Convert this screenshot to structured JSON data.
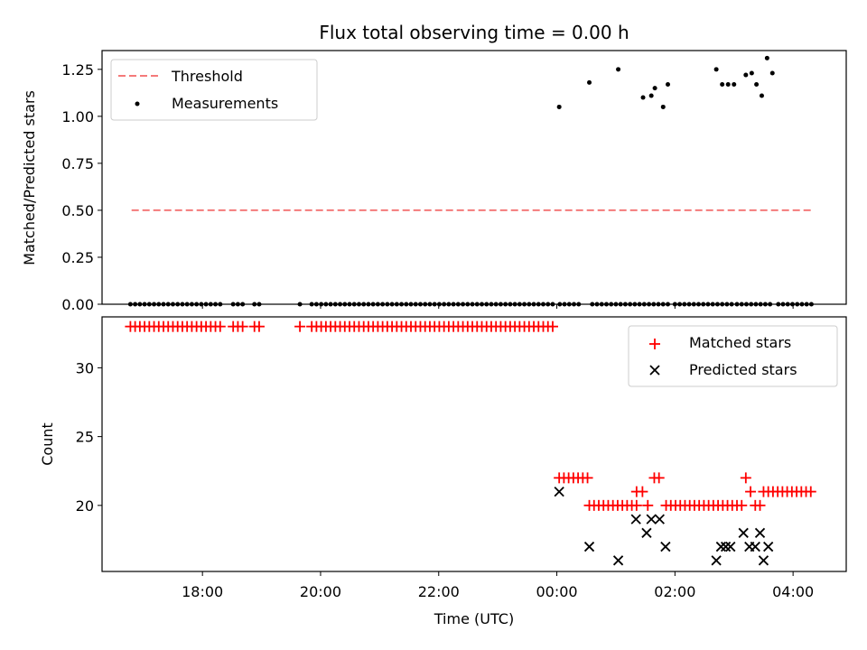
{
  "chart_data": [
    {
      "type": "scatter",
      "title": "Flux total observing time = 0.00 h",
      "xlabel": "",
      "ylabel": "Matched/Predicted stars",
      "ylim": [
        0,
        1.35
      ],
      "xlim": [
        16.3,
        28.9
      ],
      "x_unit": "hours UTC (values above 24 are after midnight)",
      "yticks": [
        "0.00",
        "0.25",
        "0.50",
        "0.75",
        "1.00",
        "1.25"
      ],
      "legend": {
        "placement": "top-left",
        "entries": [
          "Threshold",
          "Measurements"
        ]
      },
      "threshold": {
        "name": "Threshold",
        "value": 0.5,
        "x_range": [
          16.8,
          28.3
        ],
        "color": "#f47a7a"
      },
      "series": [
        {
          "name": "Measurements",
          "color": "#000000",
          "x": [
            16.78,
            16.86,
            16.94,
            17.02,
            17.1,
            17.18,
            17.26,
            17.34,
            17.42,
            17.5,
            17.58,
            17.66,
            17.74,
            17.82,
            17.9,
            17.98,
            18.06,
            18.14,
            18.22,
            18.3,
            18.52,
            18.6,
            18.68,
            18.88,
            18.96,
            19.65,
            19.85,
            19.93,
            20.01,
            20.09,
            20.17,
            20.25,
            20.33,
            20.41,
            20.49,
            20.57,
            20.65,
            20.73,
            20.81,
            20.89,
            20.97,
            21.05,
            21.13,
            21.21,
            21.29,
            21.37,
            21.45,
            21.53,
            21.61,
            21.69,
            21.77,
            21.85,
            21.93,
            22.01,
            22.09,
            22.17,
            22.25,
            22.33,
            22.41,
            22.49,
            22.57,
            22.65,
            22.73,
            22.81,
            22.89,
            22.97,
            23.05,
            23.13,
            23.21,
            23.29,
            23.37,
            23.45,
            23.53,
            23.61,
            23.69,
            23.77,
            23.85,
            23.93,
            24.05,
            24.13,
            24.21,
            24.29,
            24.37,
            24.6,
            24.68,
            24.76,
            24.84,
            24.92,
            25.0,
            25.08,
            25.16,
            25.24,
            25.32,
            25.4,
            25.48,
            25.56,
            25.64,
            25.72,
            25.8,
            25.88,
            26.0,
            26.08,
            26.16,
            26.24,
            26.32,
            26.4,
            26.48,
            26.56,
            26.64,
            26.72,
            26.8,
            26.88,
            26.96,
            27.05,
            27.13,
            27.21,
            27.29,
            27.37,
            27.45,
            27.53,
            27.61,
            27.75,
            27.83,
            27.91,
            27.99,
            28.07,
            28.15,
            28.23,
            28.31,
            24.04,
            24.55,
            25.04,
            25.46,
            25.6,
            25.66,
            25.8,
            25.88,
            26.7,
            26.8,
            26.9,
            27.0,
            27.2,
            27.3,
            27.38,
            27.47,
            27.56,
            27.65
          ],
          "y": [
            0,
            0,
            0,
            0,
            0,
            0,
            0,
            0,
            0,
            0,
            0,
            0,
            0,
            0,
            0,
            0,
            0,
            0,
            0,
            0,
            0,
            0,
            0,
            0,
            0,
            0,
            0,
            0,
            0,
            0,
            0,
            0,
            0,
            0,
            0,
            0,
            0,
            0,
            0,
            0,
            0,
            0,
            0,
            0,
            0,
            0,
            0,
            0,
            0,
            0,
            0,
            0,
            0,
            0,
            0,
            0,
            0,
            0,
            0,
            0,
            0,
            0,
            0,
            0,
            0,
            0,
            0,
            0,
            0,
            0,
            0,
            0,
            0,
            0,
            0,
            0,
            0,
            0,
            0,
            0,
            0,
            0,
            0,
            0,
            0,
            0,
            0,
            0,
            0,
            0,
            0,
            0,
            0,
            0,
            0,
            0,
            0,
            0,
            0,
            0,
            0,
            0,
            0,
            0,
            0,
            0,
            0,
            0,
            0,
            0,
            0,
            0,
            0,
            0,
            0,
            0,
            0,
            0,
            0,
            0,
            0,
            0,
            0,
            0,
            0,
            0,
            0,
            0,
            0,
            1.05,
            1.18,
            1.25,
            1.1,
            1.11,
            1.15,
            1.05,
            1.17,
            1.25,
            1.17,
            1.17,
            1.17,
            1.22,
            1.23,
            1.17,
            1.11,
            1.31,
            1.23
          ]
        }
      ]
    },
    {
      "type": "scatter",
      "title": "",
      "xlabel": "Time (UTC)",
      "ylabel": "Count",
      "ylim": [
        15.2,
        33.7
      ],
      "xlim": [
        16.3,
        28.9
      ],
      "xticks": [
        "18:00",
        "20:00",
        "22:00",
        "00:00",
        "02:00",
        "04:00"
      ],
      "xtick_values": [
        18,
        20,
        22,
        24,
        26,
        28
      ],
      "yticks": [
        "20",
        "25",
        "30"
      ],
      "legend": {
        "placement": "top-right",
        "entries": [
          "Matched stars",
          "Predicted stars"
        ]
      },
      "series": [
        {
          "name": "Matched stars",
          "color": "#ff0000",
          "marker": "plus",
          "x": [
            16.78,
            16.86,
            16.94,
            17.02,
            17.1,
            17.18,
            17.26,
            17.34,
            17.42,
            17.5,
            17.58,
            17.66,
            17.74,
            17.82,
            17.9,
            17.98,
            18.06,
            18.14,
            18.22,
            18.3,
            18.52,
            18.6,
            18.68,
            18.88,
            18.96,
            19.65,
            19.85,
            19.93,
            20.01,
            20.09,
            20.17,
            20.25,
            20.33,
            20.41,
            20.49,
            20.57,
            20.65,
            20.73,
            20.81,
            20.89,
            20.97,
            21.05,
            21.13,
            21.21,
            21.29,
            21.37,
            21.45,
            21.53,
            21.61,
            21.69,
            21.77,
            21.85,
            21.93,
            22.01,
            22.09,
            22.17,
            22.25,
            22.33,
            22.41,
            22.49,
            22.57,
            22.65,
            22.73,
            22.81,
            22.89,
            22.97,
            23.05,
            23.13,
            23.21,
            23.29,
            23.37,
            23.45,
            23.53,
            23.61,
            23.69,
            23.77,
            23.85,
            23.93,
            24.04,
            24.12,
            24.2,
            24.28,
            24.36,
            24.44,
            24.52,
            24.55,
            24.63,
            24.71,
            24.79,
            24.87,
            24.95,
            25.03,
            25.11,
            25.19,
            25.27,
            25.35,
            25.35,
            25.45,
            25.54,
            25.65,
            25.73,
            25.85,
            25.93,
            26.01,
            26.09,
            26.17,
            26.25,
            26.33,
            26.41,
            26.49,
            26.57,
            26.65,
            26.73,
            26.81,
            26.89,
            26.97,
            27.05,
            27.13,
            27.2,
            27.28,
            27.36,
            27.44,
            27.5,
            27.58,
            27.66,
            27.74,
            27.82,
            27.9,
            27.98,
            28.06,
            28.14,
            28.22,
            28.3
          ],
          "y": [
            33,
            33,
            33,
            33,
            33,
            33,
            33,
            33,
            33,
            33,
            33,
            33,
            33,
            33,
            33,
            33,
            33,
            33,
            33,
            33,
            33,
            33,
            33,
            33,
            33,
            33,
            33,
            33,
            33,
            33,
            33,
            33,
            33,
            33,
            33,
            33,
            33,
            33,
            33,
            33,
            33,
            33,
            33,
            33,
            33,
            33,
            33,
            33,
            33,
            33,
            33,
            33,
            33,
            33,
            33,
            33,
            33,
            33,
            33,
            33,
            33,
            33,
            33,
            33,
            33,
            33,
            33,
            33,
            33,
            33,
            33,
            33,
            33,
            33,
            33,
            33,
            33,
            33,
            22,
            22,
            22,
            22,
            22,
            22,
            22,
            20,
            20,
            20,
            20,
            20,
            20,
            20,
            20,
            20,
            20,
            20,
            21,
            21,
            20,
            22,
            22,
            20,
            20,
            20,
            20,
            20,
            20,
            20,
            20,
            20,
            20,
            20,
            20,
            20,
            20,
            20,
            20,
            20,
            22,
            21,
            20,
            20,
            21,
            21,
            21,
            21,
            21,
            21,
            21,
            21,
            21,
            21,
            21
          ]
        },
        {
          "name": "Predicted stars",
          "color": "#000000",
          "marker": "x",
          "x": [
            24.04,
            24.55,
            25.04,
            25.34,
            25.52,
            25.6,
            25.74,
            25.84,
            26.7,
            26.78,
            26.86,
            26.94,
            27.16,
            27.26,
            27.36,
            27.44,
            27.5,
            27.58
          ],
          "y": [
            21,
            17,
            16,
            19,
            18,
            19,
            19,
            17,
            16,
            17,
            17,
            17,
            18,
            17,
            17,
            18,
            16,
            17
          ]
        }
      ]
    }
  ]
}
